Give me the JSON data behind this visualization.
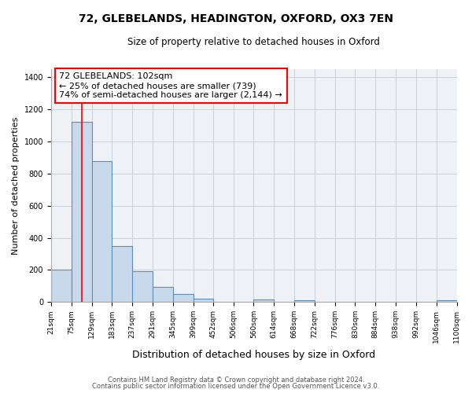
{
  "title1": "72, GLEBELANDS, HEADINGTON, OXFORD, OX3 7EN",
  "title2": "Size of property relative to detached houses in Oxford",
  "xlabel": "Distribution of detached houses by size in Oxford",
  "ylabel": "Number of detached properties",
  "bin_edges": [
    21,
    75,
    129,
    183,
    237,
    291,
    345,
    399,
    452,
    506,
    560,
    614,
    668,
    722,
    776,
    830,
    884,
    938,
    992,
    1046,
    1100
  ],
  "bar_heights": [
    200,
    1120,
    880,
    350,
    190,
    95,
    50,
    20,
    0,
    0,
    15,
    0,
    10,
    0,
    0,
    0,
    0,
    0,
    0,
    10
  ],
  "bar_color": "#c9d9ec",
  "bar_edge_color": "#5b8db8",
  "red_line_x": 102,
  "annotation_line1": "72 GLEBELANDS: 102sqm",
  "annotation_line2": "← 25% of detached houses are smaller (739)",
  "annotation_line3": "74% of semi-detached houses are larger (2,144) →",
  "ylim": [
    0,
    1450
  ],
  "yticks": [
    0,
    200,
    400,
    600,
    800,
    1000,
    1200,
    1400
  ],
  "footnote1": "Contains HM Land Registry data © Crown copyright and database right 2024.",
  "footnote2": "Contains public sector information licensed under the Open Government Licence v3.0.",
  "plot_bg_color": "#eef2f7",
  "grid_color": "#c8d0da",
  "title1_fontsize": 10,
  "title2_fontsize": 8.5,
  "ylabel_fontsize": 8,
  "xlabel_fontsize": 9,
  "tick_fontsize": 6.5,
  "annot_fontsize": 8,
  "footnote_fontsize": 6
}
